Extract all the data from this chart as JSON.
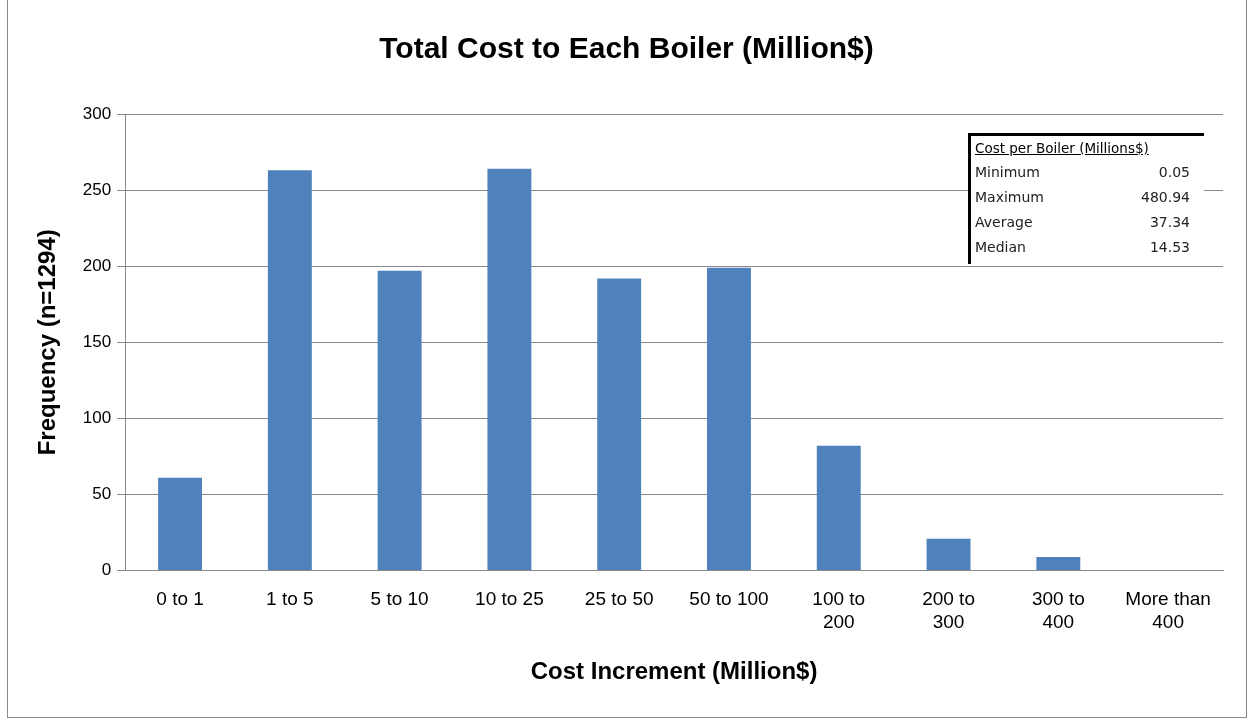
{
  "chart_data": {
    "type": "bar",
    "title": "Total Cost to Each Boiler (Million$)",
    "xlabel": "Cost Increment (Million$)",
    "ylabel": "Frequency (n=1294)",
    "categories": [
      "0 to 1",
      "1 to 5",
      "5 to 10",
      "10 to 25",
      "25 to 50",
      "50 to 100",
      "100 to 200",
      "200 to 300",
      "300 to 400",
      "More than 400"
    ],
    "values": [
      61,
      263,
      197,
      264,
      192,
      199,
      82,
      21,
      9,
      0
    ],
    "color": "#4f81bd",
    "ylim": [
      0,
      300
    ],
    "yticks": [
      0,
      50,
      100,
      150,
      200,
      250,
      300
    ],
    "grid": "y",
    "legend": false,
    "annotations": [
      "Cost per Boiler (Millions$)",
      "Minimum 0.05",
      "Maximum 480.94",
      "Average 37.34",
      "Median 14.53"
    ]
  }
}
